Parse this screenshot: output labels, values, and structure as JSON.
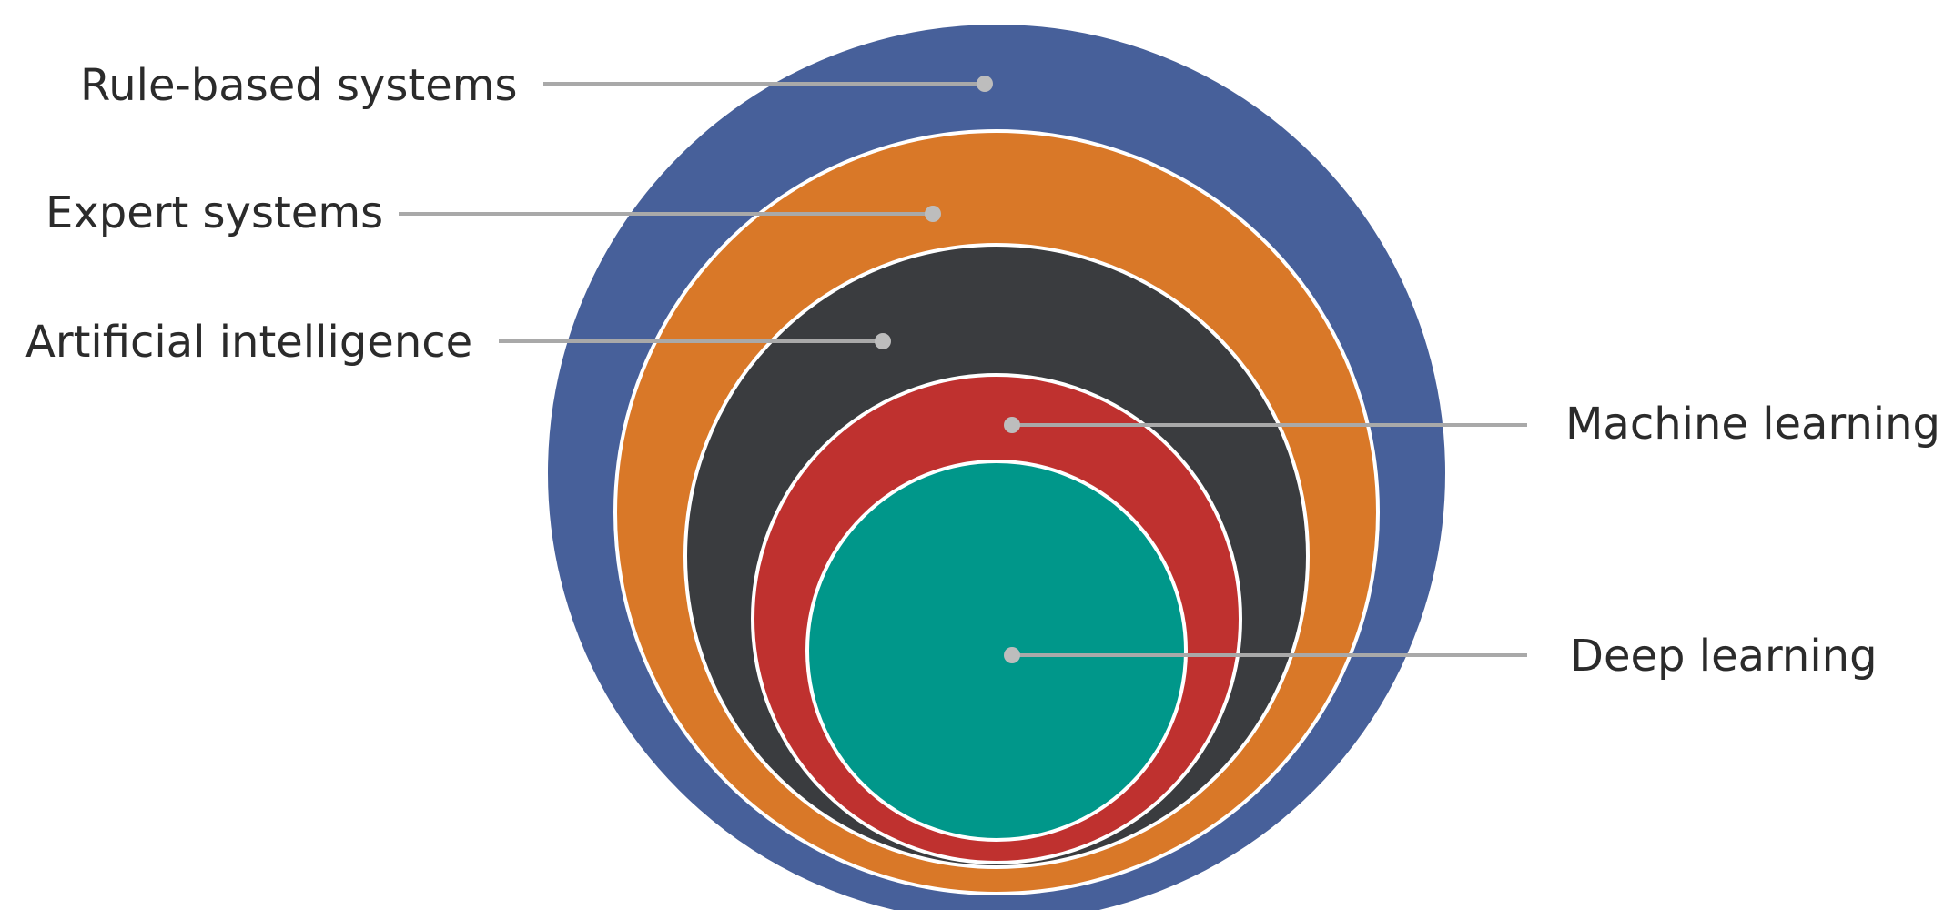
{
  "diagram": {
    "layers": [
      {
        "label": "Rule-based systems",
        "color": "#47609a"
      },
      {
        "label": "Expert systems",
        "color": "#d97828"
      },
      {
        "label": "Artificial intelligence",
        "color": "#3a3c3f"
      },
      {
        "label": "Machine learning",
        "color": "#bf312f"
      },
      {
        "label": "Deep learning",
        "color": "#00978a"
      }
    ]
  }
}
